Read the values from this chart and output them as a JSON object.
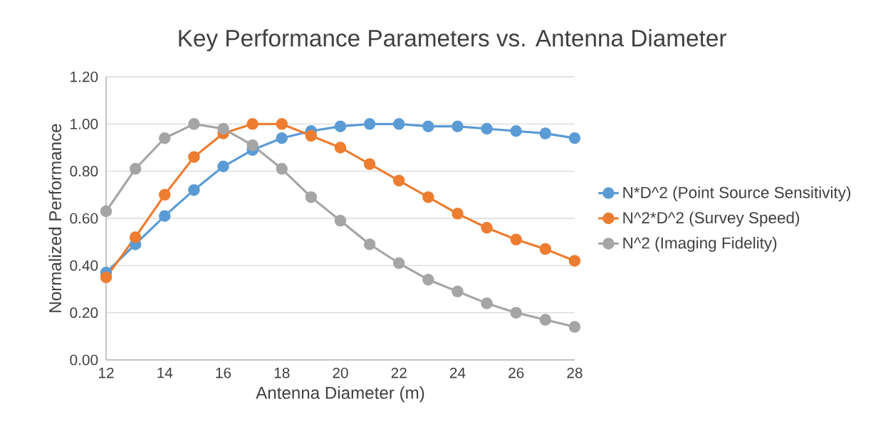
{
  "chart_data": {
    "type": "line",
    "title": "Key Performance Parameters vs. Antenna Diameter",
    "xlabel": "Antenna Diameter (m)",
    "ylabel": "Normalized Performance",
    "x": [
      12,
      13,
      14,
      15,
      16,
      17,
      18,
      19,
      20,
      21,
      22,
      23,
      24,
      25,
      26,
      27,
      28
    ],
    "series": [
      {
        "name": "N*D^2 (Point Source Sensitivity)",
        "color": "#5b9bd5",
        "values": [
          0.37,
          0.49,
          0.61,
          0.72,
          0.82,
          0.89,
          0.94,
          0.97,
          0.99,
          1.0,
          1.0,
          0.99,
          0.99,
          0.98,
          0.97,
          0.96,
          0.94
        ]
      },
      {
        "name": "N^2*D^2 (Survey Speed)",
        "color": "#ed7d31",
        "values": [
          0.35,
          0.52,
          0.7,
          0.86,
          0.96,
          1.0,
          1.0,
          0.95,
          0.9,
          0.83,
          0.76,
          0.69,
          0.62,
          0.56,
          0.51,
          0.47,
          0.42
        ]
      },
      {
        "name": "N^2 (Imaging Fidelity)",
        "color": "#a5a5a5",
        "values": [
          0.63,
          0.81,
          0.94,
          1.0,
          0.98,
          0.91,
          0.81,
          0.69,
          0.59,
          0.49,
          0.41,
          0.34,
          0.29,
          0.24,
          0.2,
          0.17,
          0.14
        ]
      }
    ],
    "xlim": [
      12,
      28
    ],
    "xticks": [
      12,
      14,
      16,
      18,
      20,
      22,
      24,
      26,
      28
    ],
    "ylim": [
      0,
      1.2
    ],
    "yticks": [
      {
        "value": 0,
        "label": "0.00"
      },
      {
        "value": 0.2,
        "label": "0.20"
      },
      {
        "value": 0.4,
        "label": "0.40"
      },
      {
        "value": 0.6,
        "label": "0.60"
      },
      {
        "value": 0.8,
        "label": "0.80"
      },
      {
        "value": 1.0,
        "label": "1.00"
      },
      {
        "value": 1.2,
        "label": "1.20"
      }
    ],
    "grid": "y",
    "legend": "right",
    "marker": "circle",
    "line_style": "solid"
  }
}
